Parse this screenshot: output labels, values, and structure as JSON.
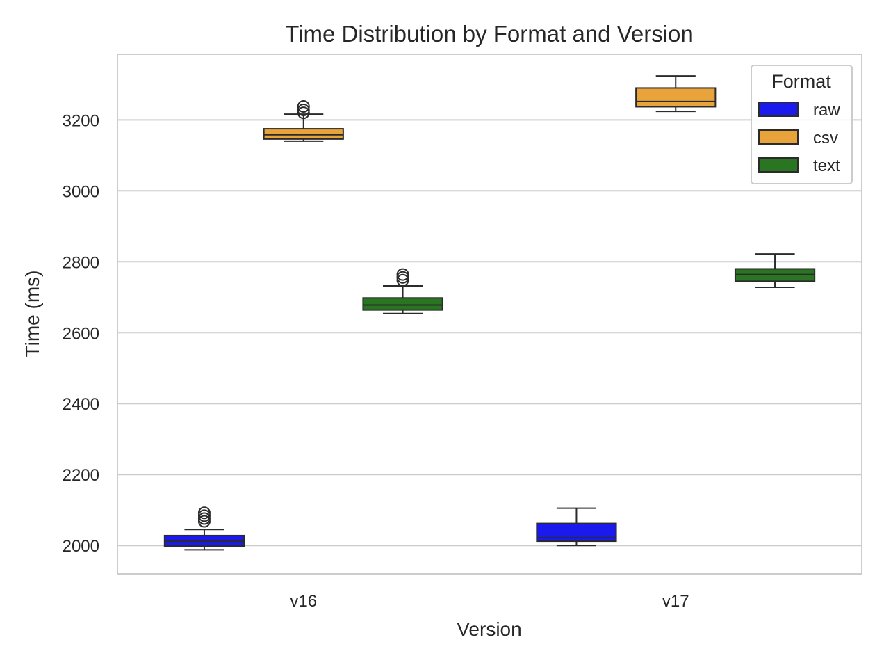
{
  "chart_data": {
    "type": "box",
    "title": "Time Distribution by Format and Version",
    "xlabel": "Version",
    "ylabel": "Time (ms)",
    "categories": [
      "v16",
      "v17"
    ],
    "ylim": [
      1920,
      3385
    ],
    "yticks": [
      2000,
      2200,
      2400,
      2600,
      2800,
      3000,
      3200
    ],
    "grid": true,
    "legend": {
      "title": "Format",
      "position": "top-right"
    },
    "series": [
      {
        "name": "raw",
        "color": "#1a1aee",
        "boxes": [
          {
            "category": "v16",
            "whislo": 1988,
            "q1": 1998,
            "median": 2012,
            "q3": 2028,
            "whishi": 2045,
            "fliers": [
              2068,
              2076,
              2084,
              2092
            ]
          },
          {
            "category": "v17",
            "whislo": 2000,
            "q1": 2012,
            "median": 2022,
            "q3": 2062,
            "whishi": 2105,
            "fliers": []
          }
        ]
      },
      {
        "name": "csv",
        "color": "#e8a33a",
        "boxes": [
          {
            "category": "v16",
            "whislo": 3140,
            "q1": 3146,
            "median": 3158,
            "q3": 3175,
            "whishi": 3216,
            "fliers": [
              3220,
              3228,
              3238
            ]
          },
          {
            "category": "v17",
            "whislo": 3224,
            "q1": 3237,
            "median": 3252,
            "q3": 3290,
            "whishi": 3324,
            "fliers": []
          }
        ]
      },
      {
        "name": "text",
        "color": "#2a7521",
        "boxes": [
          {
            "category": "v16",
            "whislo": 2654,
            "q1": 2664,
            "median": 2678,
            "q3": 2698,
            "whishi": 2732,
            "fliers": [
              2748,
              2756,
              2764
            ]
          },
          {
            "category": "v17",
            "whislo": 2728,
            "q1": 2745,
            "median": 2764,
            "q3": 2780,
            "whishi": 2822,
            "fliers": []
          }
        ]
      }
    ]
  }
}
